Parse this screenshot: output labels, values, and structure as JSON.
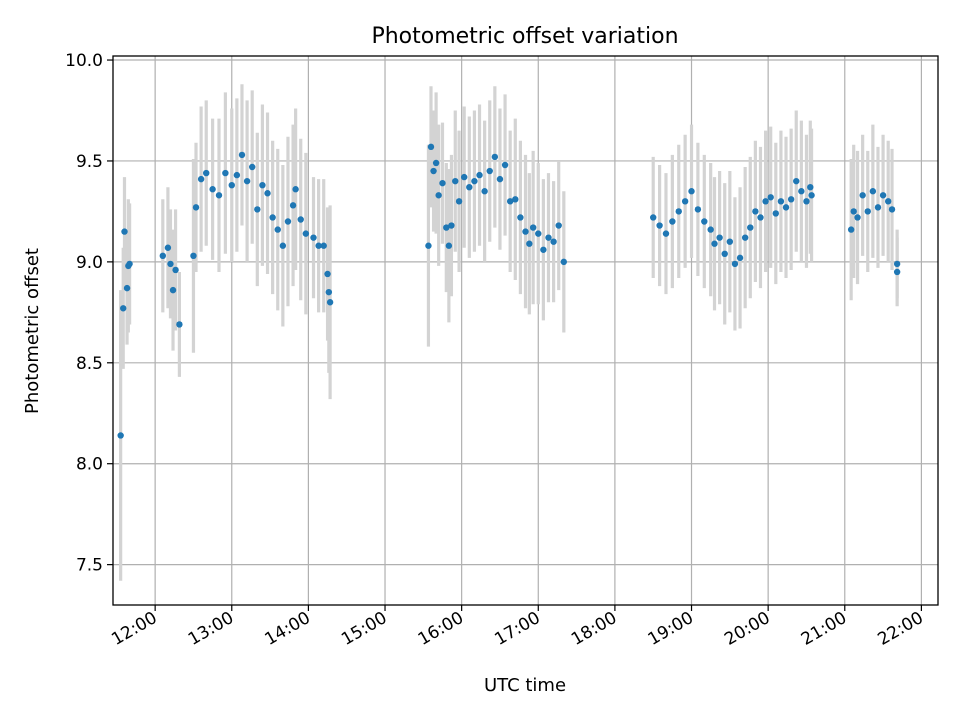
{
  "chart_data": {
    "type": "scatter",
    "title": "Photometric offset variation",
    "xlabel": "UTC time",
    "ylabel": "Photometric offset",
    "xlim": [
      "11:27",
      "22:13"
    ],
    "ylim": [
      7.3,
      10.02
    ],
    "x_ticks": [
      "12:00",
      "13:00",
      "14:00",
      "15:00",
      "16:00",
      "17:00",
      "18:00",
      "19:00",
      "20:00",
      "21:00",
      "22:00"
    ],
    "y_ticks": [
      "7.5",
      "8.0",
      "8.5",
      "9.0",
      "9.5",
      "10.0"
    ],
    "grid": true,
    "colors": {
      "points": "#1f77b4",
      "errorbars": "#d3d3d3",
      "grid": "#b0b0b0"
    },
    "series": [
      {
        "points": [
          [
            "11:33",
            8.14,
            0.72
          ],
          [
            "11:35",
            8.77,
            0.3
          ],
          [
            "11:36",
            9.15,
            0.27
          ],
          [
            "11:38",
            8.87,
            0.28
          ],
          [
            "11:39",
            8.98,
            0.33
          ],
          [
            "11:40",
            8.99,
            0.3
          ],
          [
            "12:06",
            9.03,
            0.28
          ],
          [
            "12:10",
            9.07,
            0.3
          ],
          [
            "12:12",
            8.99,
            0.27
          ],
          [
            "12:14",
            8.86,
            0.3
          ],
          [
            "12:16",
            8.96,
            0.3
          ],
          [
            "12:19",
            8.69,
            0.26
          ],
          [
            "12:30",
            9.03,
            0.48
          ],
          [
            "12:32",
            9.27,
            0.32
          ],
          [
            "12:36",
            9.41,
            0.36
          ],
          [
            "12:40",
            9.44,
            0.36
          ],
          [
            "12:45",
            9.36,
            0.35
          ],
          [
            "12:50",
            9.33,
            0.38
          ],
          [
            "12:55",
            9.44,
            0.4
          ],
          [
            "13:00",
            9.38,
            0.38
          ],
          [
            "13:04",
            9.43,
            0.38
          ],
          [
            "13:08",
            9.53,
            0.35
          ],
          [
            "13:12",
            9.4,
            0.4
          ],
          [
            "13:16",
            9.47,
            0.38
          ],
          [
            "13:20",
            9.26,
            0.38
          ],
          [
            "13:24",
            9.38,
            0.4
          ],
          [
            "13:28",
            9.34,
            0.4
          ],
          [
            "13:32",
            9.22,
            0.38
          ],
          [
            "13:36",
            9.16,
            0.4
          ],
          [
            "13:40",
            9.08,
            0.4
          ],
          [
            "13:44",
            9.2,
            0.42
          ],
          [
            "13:48",
            9.28,
            0.4
          ],
          [
            "13:50",
            9.36,
            0.4
          ],
          [
            "13:54",
            9.21,
            0.4
          ],
          [
            "13:58",
            9.14,
            0.4
          ],
          [
            "14:04",
            9.12,
            0.3
          ],
          [
            "14:08",
            9.08,
            0.33
          ],
          [
            "14:12",
            9.08,
            0.33
          ],
          [
            "14:15",
            8.94,
            0.33
          ],
          [
            "14:16",
            8.85,
            0.4
          ],
          [
            "14:17",
            8.8,
            0.48
          ],
          [
            "15:34",
            9.08,
            0.5
          ],
          [
            "15:36",
            9.57,
            0.3
          ],
          [
            "15:38",
            9.45,
            0.3
          ],
          [
            "15:40",
            9.49,
            0.35
          ],
          [
            "15:42",
            9.33,
            0.35
          ],
          [
            "15:45",
            9.39,
            0.3
          ],
          [
            "15:48",
            9.17,
            0.32
          ],
          [
            "15:50",
            9.08,
            0.38
          ],
          [
            "15:52",
            9.18,
            0.35
          ],
          [
            "15:55",
            9.4,
            0.35
          ],
          [
            "15:58",
            9.3,
            0.35
          ],
          [
            "16:02",
            9.42,
            0.35
          ],
          [
            "16:06",
            9.37,
            0.35
          ],
          [
            "16:10",
            9.4,
            0.35
          ],
          [
            "16:14",
            9.43,
            0.35
          ],
          [
            "16:18",
            9.35,
            0.35
          ],
          [
            "16:22",
            9.45,
            0.35
          ],
          [
            "16:26",
            9.52,
            0.35
          ],
          [
            "16:30",
            9.41,
            0.35
          ],
          [
            "16:34",
            9.48,
            0.35
          ],
          [
            "16:38",
            9.3,
            0.35
          ],
          [
            "16:42",
            9.31,
            0.4
          ],
          [
            "16:46",
            9.22,
            0.38
          ],
          [
            "16:50",
            9.15,
            0.38
          ],
          [
            "16:53",
            9.09,
            0.35
          ],
          [
            "16:56",
            9.17,
            0.38
          ],
          [
            "17:00",
            9.14,
            0.35
          ],
          [
            "17:04",
            9.06,
            0.35
          ],
          [
            "17:08",
            9.12,
            0.32
          ],
          [
            "17:12",
            9.1,
            0.3
          ],
          [
            "17:16",
            9.18,
            0.32
          ],
          [
            "17:20",
            9.0,
            0.35
          ],
          [
            "18:30",
            9.22,
            0.3
          ],
          [
            "18:35",
            9.18,
            0.3
          ],
          [
            "18:40",
            9.14,
            0.3
          ],
          [
            "18:45",
            9.2,
            0.33
          ],
          [
            "18:50",
            9.25,
            0.33
          ],
          [
            "18:55",
            9.3,
            0.33
          ],
          [
            "19:00",
            9.35,
            0.33
          ],
          [
            "19:05",
            9.26,
            0.33
          ],
          [
            "19:10",
            9.2,
            0.33
          ],
          [
            "19:15",
            9.16,
            0.33
          ],
          [
            "19:18",
            9.09,
            0.33
          ],
          [
            "19:22",
            9.12,
            0.33
          ],
          [
            "19:26",
            9.04,
            0.35
          ],
          [
            "19:30",
            9.1,
            0.35
          ],
          [
            "19:34",
            8.99,
            0.33
          ],
          [
            "19:38",
            9.02,
            0.35
          ],
          [
            "19:42",
            9.12,
            0.35
          ],
          [
            "19:46",
            9.17,
            0.35
          ],
          [
            "19:50",
            9.25,
            0.35
          ],
          [
            "19:54",
            9.22,
            0.35
          ],
          [
            "19:58",
            9.3,
            0.35
          ],
          [
            "20:02",
            9.32,
            0.35
          ],
          [
            "20:06",
            9.24,
            0.35
          ],
          [
            "20:10",
            9.3,
            0.35
          ],
          [
            "20:14",
            9.27,
            0.35
          ],
          [
            "20:18",
            9.31,
            0.35
          ],
          [
            "20:22",
            9.4,
            0.35
          ],
          [
            "20:26",
            9.35,
            0.35
          ],
          [
            "20:30",
            9.3,
            0.33
          ],
          [
            "20:33",
            9.37,
            0.33
          ],
          [
            "20:34",
            9.33,
            0.33
          ],
          [
            "21:05",
            9.16,
            0.35
          ],
          [
            "21:07",
            9.25,
            0.33
          ],
          [
            "21:10",
            9.22,
            0.33
          ],
          [
            "21:14",
            9.33,
            0.3
          ],
          [
            "21:18",
            9.25,
            0.3
          ],
          [
            "21:22",
            9.35,
            0.33
          ],
          [
            "21:26",
            9.27,
            0.3
          ],
          [
            "21:30",
            9.33,
            0.3
          ],
          [
            "21:34",
            9.3,
            0.3
          ],
          [
            "21:37",
            9.26,
            0.3
          ],
          [
            "21:41",
            8.99,
            0.17
          ],
          [
            "21:41",
            8.95,
            0.17
          ]
        ]
      }
    ]
  }
}
